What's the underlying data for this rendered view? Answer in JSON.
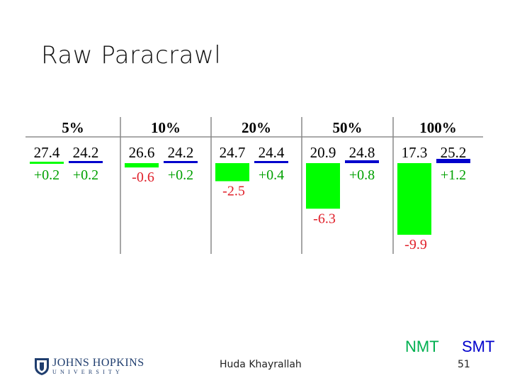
{
  "title": "Raw Paracrawl",
  "colors": {
    "nmt": "#00ff00",
    "smt": "#0000cc",
    "nmt_text": "#00b050",
    "smt_text": "#0000cc",
    "neg_text": "#e0202a",
    "pos_text": "#00a000",
    "smt_delta_text": "#1a1aff"
  },
  "chart_data": {
    "type": "table",
    "columns": [
      "5%",
      "10%",
      "20%",
      "50%",
      "100%"
    ],
    "rows": [
      {
        "column": "5%",
        "nmt": {
          "value": "27.4",
          "delta": "+0.2",
          "delta_num": 0.2
        },
        "smt": {
          "value": "24.2",
          "delta": "+0.2",
          "delta_num": 0.2
        }
      },
      {
        "column": "10%",
        "nmt": {
          "value": "26.6",
          "delta": "-0.6",
          "delta_num": -0.6
        },
        "smt": {
          "value": "24.2",
          "delta": "+0.2",
          "delta_num": 0.2
        }
      },
      {
        "column": "20%",
        "nmt": {
          "value": "24.7",
          "delta": "-2.5",
          "delta_num": -2.5
        },
        "smt": {
          "value": "24.4",
          "delta": "+0.4",
          "delta_num": 0.4
        }
      },
      {
        "column": "50%",
        "nmt": {
          "value": "20.9",
          "delta": "-6.3",
          "delta_num": -6.3
        },
        "smt": {
          "value": "24.8",
          "delta": "+0.8",
          "delta_num": 0.8
        }
      },
      {
        "column": "100%",
        "nmt": {
          "value": "17.3",
          "delta": "-9.9",
          "delta_num": -9.9
        },
        "smt": {
          "value": "25.2",
          "delta": "+1.2",
          "delta_num": 1.2
        }
      }
    ]
  },
  "legend": {
    "nmt": "NMT",
    "smt": "SMT"
  },
  "footer": {
    "logo_top": "JOHNS HOPKINS",
    "logo_bottom": "UNIVERSITY",
    "presenter": "Huda Khayrallah",
    "page_number": "51"
  }
}
